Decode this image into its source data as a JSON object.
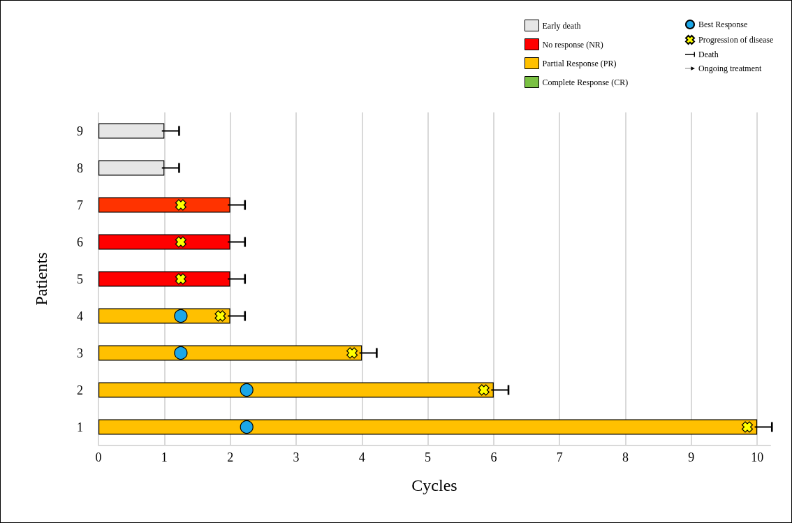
{
  "chart_data": {
    "type": "bar",
    "orientation": "horizontal",
    "stacked": true,
    "xlabel": "Cycles",
    "ylabel": "Patients",
    "categories": [
      "9",
      "8",
      "7",
      "6",
      "5",
      "4",
      "3",
      "2",
      "1"
    ],
    "xlim": [
      0,
      10.2
    ],
    "xticks": [
      0,
      1,
      2,
      3,
      4,
      5,
      6,
      7,
      8,
      9,
      10
    ],
    "grid": "x",
    "legend": "top right",
    "series": [
      {
        "name": "Early death",
        "color": "#e6e6e6",
        "values": [
          1,
          1,
          null,
          null,
          null,
          null,
          null,
          null,
          null
        ]
      },
      {
        "name": "No response (NR)",
        "color": "#ff0000",
        "colors": [
          null,
          null,
          "#ff3300",
          "#ff0000",
          "#ff0000",
          null,
          null,
          null,
          null
        ],
        "values": [
          null,
          null,
          2,
          2,
          2,
          null,
          null,
          null,
          null
        ]
      },
      {
        "name": "Partial Response (PR)",
        "color": "#ffc000",
        "values": [
          null,
          null,
          null,
          null,
          null,
          2,
          4,
          6,
          10
        ]
      },
      {
        "name": "Complete Response (CR)",
        "color": "#7ac143",
        "values": [
          null,
          null,
          null,
          null,
          null,
          null,
          null,
          null,
          null
        ]
      },
      {
        "name": "Best Response",
        "type": "scatter",
        "marker": "circle",
        "color": "#1ca7e8",
        "values": [
          null,
          null,
          null,
          null,
          null,
          1.25,
          1.25,
          2.25,
          2.25
        ]
      },
      {
        "name": "Progression of disease",
        "type": "scatter",
        "marker": "cross",
        "color": "#ffff00",
        "values": [
          null,
          null,
          1.25,
          1.25,
          1.25,
          1.85,
          3.85,
          5.85,
          9.85
        ]
      },
      {
        "name": "Death",
        "type": "scatter",
        "color": "#000000",
        "values": [
          1.1,
          1.1,
          2.1,
          2.1,
          2.1,
          2.1,
          4.1,
          6.1,
          10.1
        ]
      },
      {
        "name": "Ongoing treatment",
        "type": "line",
        "marker": "triangle",
        "color": "#000000",
        "values": [
          null,
          null,
          null,
          null,
          null,
          null,
          null,
          null,
          null
        ]
      }
    ]
  }
}
